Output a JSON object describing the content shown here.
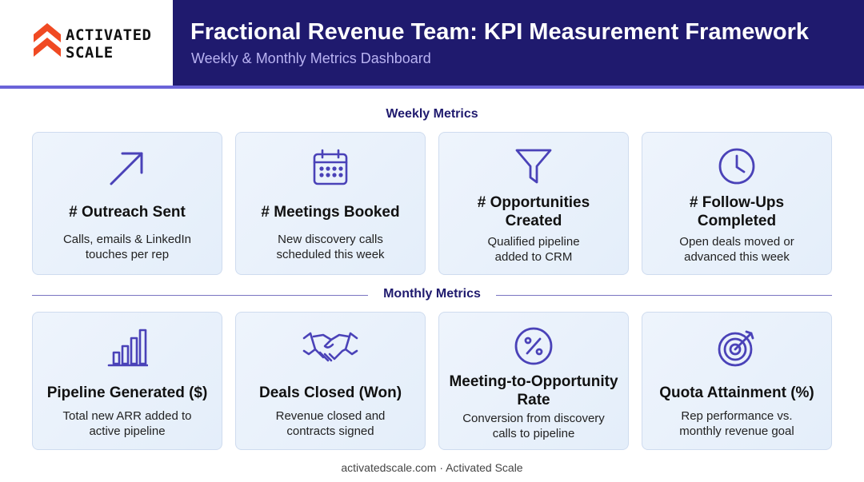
{
  "logo": {
    "line1": "ACTIVATED",
    "line2": "SCALE",
    "accent_color": "#f04a23"
  },
  "header": {
    "title": "Fractional Revenue Team: KPI Measurement Framework",
    "subtitle": "Weekly & Monthly Metrics Dashboard"
  },
  "weekly": {
    "label": "Weekly Metrics",
    "cards": [
      {
        "icon": "arrow-up-right-icon",
        "title": "# Outreach Sent",
        "desc_line1": "Calls, emails & LinkedIn",
        "desc_line2": "touches per rep"
      },
      {
        "icon": "calendar-icon",
        "title": "# Meetings Booked",
        "desc_line1": "New discovery calls",
        "desc_line2": "scheduled this week"
      },
      {
        "icon": "funnel-icon",
        "title_line1": "# Opportunities",
        "title_line2": "Created",
        "desc_line1": "Qualified pipeline",
        "desc_line2": "added to CRM"
      },
      {
        "icon": "clock-icon",
        "title_line1": "# Follow-Ups",
        "title_line2": "Completed",
        "desc_line1": "Open deals moved or",
        "desc_line2": "advanced this week"
      }
    ]
  },
  "monthly": {
    "label": "Monthly Metrics",
    "cards": [
      {
        "icon": "bar-chart-icon",
        "title": "Pipeline Generated ($)",
        "desc_line1": "Total new ARR added to",
        "desc_line2": "active pipeline"
      },
      {
        "icon": "handshake-icon",
        "title": "Deals Closed (Won)",
        "desc_line1": "Revenue closed and",
        "desc_line2": "contracts signed"
      },
      {
        "icon": "percent-icon",
        "title_line1": "Meeting-to-Opportunity",
        "title_line2": "Rate",
        "desc_line1": "Conversion from discovery",
        "desc_line2": "calls to pipeline"
      },
      {
        "icon": "target-icon",
        "title": "Quota Attainment (%)",
        "desc_line1": "Rep performance vs.",
        "desc_line2": "monthly revenue goal"
      }
    ]
  },
  "footer": {
    "text": "activatedscale.com · Activated Scale"
  },
  "colors": {
    "header_bg": "#1f1a6e",
    "icon_stroke": "#4a42b8",
    "card_bg": "#eaf2fb"
  }
}
